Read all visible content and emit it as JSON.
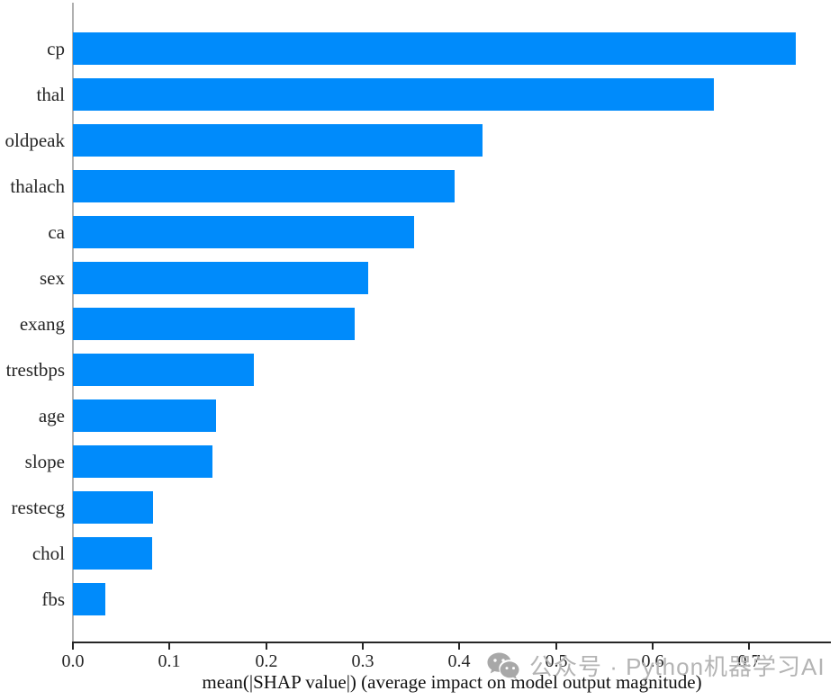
{
  "watermark": {
    "icon": "wechat-icon",
    "text": "公众号 · Python机器学习AI",
    "color": "#b4b4b4",
    "icon_color": "#a8a8a8"
  },
  "chart_data": {
    "type": "bar",
    "orientation": "horizontal",
    "title": "",
    "categories": [
      "cp",
      "thal",
      "oldpeak",
      "thalach",
      "ca",
      "sex",
      "exang",
      "trestbps",
      "age",
      "slope",
      "restecg",
      "chol",
      "fbs"
    ],
    "values": [
      0.748,
      0.664,
      0.424,
      0.395,
      0.353,
      0.306,
      0.292,
      0.187,
      0.148,
      0.144,
      0.083,
      0.082,
      0.034
    ],
    "xlabel": "mean(|SHAP value|) (average impact on model output magnitude)",
    "ylabel": "",
    "x_ticks": [
      0.0,
      0.1,
      0.2,
      0.3,
      0.4,
      0.5,
      0.6,
      0.7
    ],
    "x_tick_labels": [
      "0.0",
      "0.1",
      "0.2",
      "0.3",
      "0.4",
      "0.5",
      "0.6",
      "0.7"
    ],
    "xlim": [
      0.0,
      0.785
    ],
    "grid": false,
    "legend": null,
    "bar_color": "#008bfb",
    "spine_color": "#b0b0b0",
    "axis_color": "#262626"
  }
}
